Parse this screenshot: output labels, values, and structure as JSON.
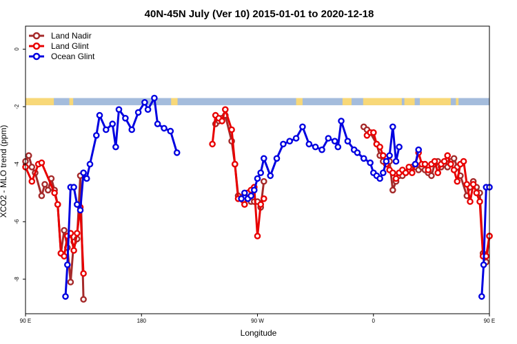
{
  "chart_data": {
    "type": "line",
    "title": "40N-45N July (Ver 10)   2015-01-01 to 2020-12-18",
    "xlabel": "Longitude",
    "ylabel": "XCO2 - MLO trend (ppm)",
    "xlim": [
      90,
      450
    ],
    "ylim": [
      -9.2,
      0.8
    ],
    "x_ticks": [
      {
        "value": 90,
        "label": "90 E"
      },
      {
        "value": 180,
        "label": "180"
      },
      {
        "value": 270,
        "label": "90 W"
      },
      {
        "value": 360,
        "label": "0"
      },
      {
        "value": 450,
        "label": "90 E"
      },
      {
        "value": 540,
        "label": "180"
      }
    ],
    "y_ticks": [
      {
        "value": 0,
        "label": "0"
      },
      {
        "value": -2,
        "label": "-2"
      },
      {
        "value": -4,
        "label": "-4"
      },
      {
        "value": -6,
        "label": "-6"
      },
      {
        "value": -8,
        "label": "-8"
      }
    ],
    "legend_position": "top-left",
    "land_band": {
      "y_top": -1.7,
      "y_bottom": -1.95,
      "ocean_color": "#a4bcdc",
      "land_color": "#f8d878"
    },
    "series": [
      {
        "name": "Land Nadir",
        "color": "#a52a2a",
        "points": [
          [
            90,
            -3.9
          ],
          [
            92.5,
            -3.7
          ],
          [
            95,
            -4.1
          ],
          [
            97.5,
            -4.3
          ],
          [
            102.5,
            -5.1
          ],
          [
            105,
            -4.7
          ],
          [
            107.5,
            -4.9
          ],
          [
            110,
            -4.5
          ],
          [
            112.5,
            -4.9
          ],
          [
            115,
            -5.4
          ],
          [
            117.5,
            -7.1
          ],
          [
            120,
            -6.3
          ],
          [
            122.5,
            -6.9
          ],
          [
            125,
            -8.1
          ],
          [
            127.5,
            -6.7
          ],
          [
            130,
            -6.6
          ],
          [
            132.5,
            -4.4
          ],
          [
            135,
            -8.7
          ],
          [
            237.5,
            -2.6
          ],
          [
            240,
            -2.5
          ],
          [
            242.5,
            -2.4
          ],
          [
            245,
            -2.3
          ],
          [
            250,
            -3.2
          ],
          [
            252.5,
            -4.0
          ],
          [
            255,
            -5.1
          ],
          [
            262.5,
            -5.0
          ],
          [
            265,
            -5.3
          ],
          [
            267.5,
            -5.3
          ],
          [
            270,
            -5.3
          ],
          [
            272.5,
            -5.5
          ],
          [
            275,
            -4.6
          ],
          [
            352.5,
            -2.7
          ],
          [
            355,
            -2.8
          ],
          [
            357.5,
            -2.9
          ],
          [
            362.5,
            -3.3
          ],
          [
            365,
            -3.7
          ],
          [
            367.5,
            -3.9
          ],
          [
            370,
            -4.0
          ],
          [
            372.5,
            -3.9
          ],
          [
            375,
            -4.9
          ],
          [
            377.5,
            -4.6
          ],
          [
            380,
            -4.4
          ],
          [
            382.5,
            -4.4
          ],
          [
            385,
            -4.3
          ],
          [
            387.5,
            -4.2
          ],
          [
            390,
            -4.1
          ],
          [
            392.5,
            -4.1
          ],
          [
            395,
            -4.2
          ],
          [
            397.5,
            -4.1
          ],
          [
            400,
            -4.2
          ],
          [
            402.5,
            -4.3
          ],
          [
            405,
            -4.4
          ],
          [
            407.5,
            -4.0
          ],
          [
            410,
            -3.9
          ],
          [
            412.5,
            -4.1
          ],
          [
            415,
            -4.0
          ],
          [
            417.5,
            -4.1
          ],
          [
            420,
            -3.9
          ],
          [
            422.5,
            -3.8
          ],
          [
            425,
            -4.1
          ],
          [
            427.5,
            -4.4
          ],
          [
            432.5,
            -5.1
          ],
          [
            435,
            -4.8
          ],
          [
            437.5,
            -4.6
          ],
          [
            440,
            -4.8
          ],
          [
            442.5,
            -5.0
          ],
          [
            445,
            -7.1
          ],
          [
            447.5,
            -7.4
          ],
          [
            450,
            -6.5
          ]
        ]
      },
      {
        "name": "Land Glint",
        "color": "#e80000",
        "points": [
          [
            90,
            -4.1
          ],
          [
            95,
            -4.6
          ],
          [
            100,
            -4.0
          ],
          [
            102.5,
            -3.95
          ],
          [
            112.5,
            -5.0
          ],
          [
            115,
            -5.4
          ],
          [
            117.5,
            -7.1
          ],
          [
            120,
            -7.2
          ],
          [
            122.5,
            -6.5
          ],
          [
            125,
            -6.4
          ],
          [
            127.5,
            -7.0
          ],
          [
            130,
            -6.4
          ],
          [
            132.5,
            -5.5
          ],
          [
            135,
            -7.8
          ],
          [
            235,
            -3.3
          ],
          [
            237.5,
            -2.3
          ],
          [
            240,
            -2.4
          ],
          [
            242.5,
            -2.5
          ],
          [
            245,
            -2.1
          ],
          [
            250,
            -2.8
          ],
          [
            252.5,
            -4.0
          ],
          [
            255,
            -5.2
          ],
          [
            260,
            -5.4
          ],
          [
            262.5,
            -5.0
          ],
          [
            265,
            -4.9
          ],
          [
            267.5,
            -4.8
          ],
          [
            270,
            -6.5
          ],
          [
            272.5,
            -5.4
          ],
          [
            275,
            -5.2
          ],
          [
            355,
            -3.0
          ],
          [
            357.5,
            -2.9
          ],
          [
            360,
            -2.9
          ],
          [
            362.5,
            -3.3
          ],
          [
            365,
            -3.4
          ],
          [
            367.5,
            -3.7
          ],
          [
            370,
            -4.0
          ],
          [
            372.5,
            -4.2
          ],
          [
            375,
            -4.3
          ],
          [
            377.5,
            -4.5
          ],
          [
            380,
            -4.3
          ],
          [
            382.5,
            -4.2
          ],
          [
            385,
            -4.3
          ],
          [
            387.5,
            -4.1
          ],
          [
            390,
            -4.3
          ],
          [
            392.5,
            -4.0
          ],
          [
            395,
            -3.6
          ],
          [
            397.5,
            -4.0
          ],
          [
            400,
            -4.0
          ],
          [
            402.5,
            -4.2
          ],
          [
            405,
            -4.0
          ],
          [
            407.5,
            -3.9
          ],
          [
            410,
            -4.3
          ],
          [
            412.5,
            -4.0
          ],
          [
            415,
            -3.9
          ],
          [
            417.5,
            -3.7
          ],
          [
            420,
            -4.0
          ],
          [
            422.5,
            -4.2
          ],
          [
            425,
            -4.6
          ],
          [
            427.5,
            -4.0
          ],
          [
            430,
            -3.9
          ],
          [
            432.5,
            -4.7
          ],
          [
            435,
            -5.3
          ],
          [
            437.5,
            -4.7
          ],
          [
            440,
            -5.0
          ],
          [
            442.5,
            -5.3
          ],
          [
            445,
            -7.2
          ],
          [
            447.5,
            -7.2
          ],
          [
            450,
            -6.5
          ]
        ]
      },
      {
        "name": "Ocean Glint",
        "color": "#0000e0",
        "points": [
          [
            121,
            -8.6
          ],
          [
            122.5,
            -7.5
          ],
          [
            125,
            -4.8
          ],
          [
            127.5,
            -4.8
          ],
          [
            130,
            -5.4
          ],
          [
            132.5,
            -5.6
          ],
          [
            135,
            -4.3
          ],
          [
            137.5,
            -4.5
          ],
          [
            140,
            -4.0
          ],
          [
            145,
            -3.0
          ],
          [
            147.5,
            -2.3
          ],
          [
            152.5,
            -2.8
          ],
          [
            157.5,
            -2.6
          ],
          [
            160,
            -3.4
          ],
          [
            162.5,
            -2.1
          ],
          [
            167.5,
            -2.4
          ],
          [
            172.5,
            -2.8
          ],
          [
            177.5,
            -2.2
          ],
          [
            182.5,
            -1.85
          ],
          [
            185,
            -2.1
          ],
          [
            190,
            -1.7
          ],
          [
            192.5,
            -2.6
          ],
          [
            197.5,
            -2.75
          ],
          [
            202.5,
            -2.85
          ],
          [
            207.5,
            -3.6
          ],
          [
            257.5,
            -5.2
          ],
          [
            260,
            -5.0
          ],
          [
            262.5,
            -5.2
          ],
          [
            265,
            -5.1
          ],
          [
            267.5,
            -4.9
          ],
          [
            270,
            -4.5
          ],
          [
            272.5,
            -4.3
          ],
          [
            275,
            -3.8
          ],
          [
            280,
            -4.4
          ],
          [
            285,
            -3.8
          ],
          [
            290,
            -3.3
          ],
          [
            295,
            -3.2
          ],
          [
            300,
            -3.1
          ],
          [
            305,
            -2.7
          ],
          [
            310,
            -3.3
          ],
          [
            315,
            -3.4
          ],
          [
            320,
            -3.5
          ],
          [
            325,
            -3.1
          ],
          [
            330,
            -3.2
          ],
          [
            332.5,
            -3.4
          ],
          [
            335,
            -2.5
          ],
          [
            340,
            -3.2
          ],
          [
            345,
            -3.5
          ],
          [
            347.5,
            -3.6
          ],
          [
            352.5,
            -3.8
          ],
          [
            357.5,
            -3.95
          ],
          [
            360,
            -4.3
          ],
          [
            362.5,
            -4.4
          ],
          [
            365,
            -4.5
          ],
          [
            367.5,
            -4.3
          ],
          [
            370,
            -3.9
          ],
          [
            372.5,
            -3.7
          ],
          [
            375,
            -2.7
          ],
          [
            377.5,
            -3.9
          ],
          [
            380,
            -3.4
          ],
          [
            392.5,
            -4.0
          ],
          [
            395,
            -3.5
          ],
          [
            444,
            -8.6
          ],
          [
            445.5,
            -7.5
          ],
          [
            447.5,
            -4.8
          ],
          [
            450,
            -4.8
          ]
        ]
      }
    ]
  }
}
